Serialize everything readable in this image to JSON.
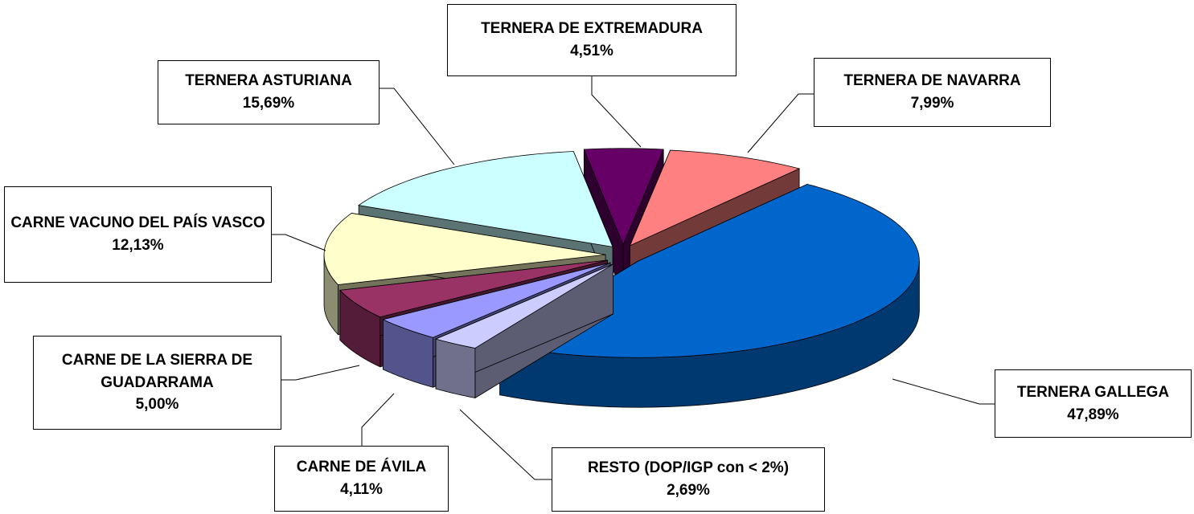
{
  "chart_data": {
    "type": "pie",
    "categories": [
      "TERNERA DE EXTREMADURA",
      "TERNERA DE NAVARRA",
      "TERNERA GALLEGA",
      "RESTO (DOP/IGP con < 2%)",
      "CARNE DE ÁVILA",
      "CARNE DE LA SIERRA DE GUADARRAMA",
      "CARNE VACUNO DEL PAÍS VASCO",
      "TERNERA ASTURIANA"
    ],
    "values": [
      4.51,
      7.99,
      47.89,
      2.69,
      4.11,
      5.0,
      12.13,
      15.69
    ],
    "value_labels": [
      "4,51%",
      "7,99%",
      "47,89%",
      "2,69%",
      "4,11%",
      "5,00%",
      "12,13%",
      "15,69%"
    ],
    "colors": [
      "#660066",
      "#ff8080",
      "#0066cc",
      "#ccccff",
      "#9999ff",
      "#993366",
      "#ffffcc",
      "#ccffff"
    ],
    "exploded": true,
    "three_d": true
  }
}
